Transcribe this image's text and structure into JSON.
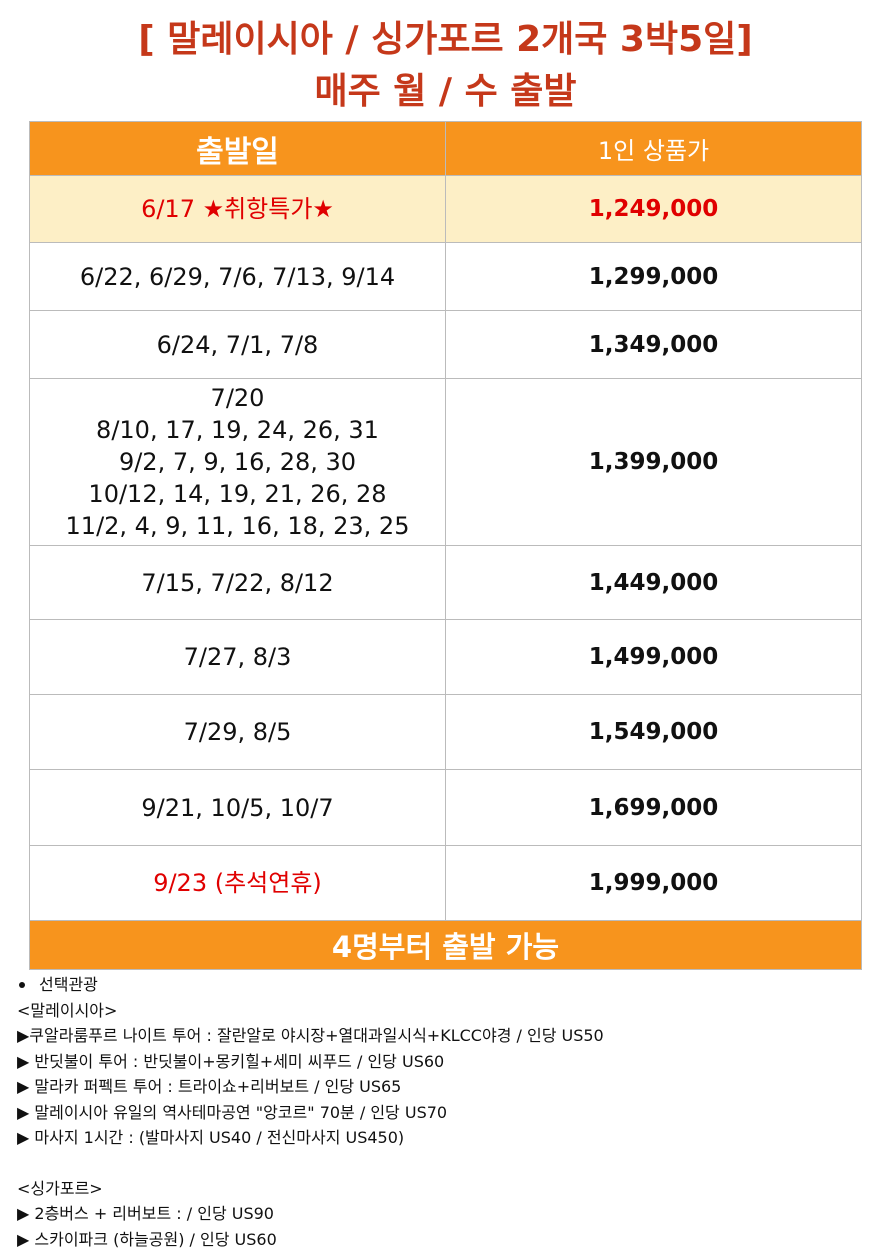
{
  "header": {
    "title": [
      "[ 말레이시아 / 싱가포르   2개국 3박5일]",
      "매주 월 / 수 출발"
    ]
  },
  "table": {
    "columns": [
      "출발일",
      "1인 상품가"
    ],
    "rows": [
      {
        "dates": [
          "6/17 ★취항특가★"
        ],
        "price": "1,249,000"
      },
      {
        "dates": [
          "6/22, 6/29, 7/6, 7/13, 9/14"
        ],
        "price": "1,299,000"
      },
      {
        "dates": [
          "6/24, 7/1, 7/8"
        ],
        "price": "1,349,000"
      },
      {
        "dates": [
          "7/20",
          "8/10, 17, 19, 24, 26, 31",
          "9/2, 7, 9, 16, 28, 30",
          "10/12, 14, 19, 21, 26, 28",
          "11/2, 4, 9, 11, 16, 18, 23, 25"
        ],
        "price": "1,399,000"
      },
      {
        "dates": [
          "7/15, 7/22, 8/12"
        ],
        "price": "1,449,000"
      },
      {
        "dates": [
          "7/27, 8/3"
        ],
        "price": "1,499,000"
      },
      {
        "dates": [
          "7/29, 8/5"
        ],
        "price": "1,549,000"
      },
      {
        "dates": [
          "9/21, 10/5, 10/7"
        ],
        "price": "1,699,000"
      },
      {
        "dates": [
          "9/23 (추석연휴)"
        ],
        "price": "1,999,000"
      }
    ],
    "footer": "4명부터 출발 가능"
  },
  "notes": {
    "heading": "선택관광",
    "groups": [
      {
        "title": "<말레이시아>",
        "items": [
          "▶쿠알라룸푸르 나이트 투어 : 잘란알로 야시장+열대과일시식+KLCC야경 / 인당 US50",
          "▶ 반딧불이 투어 : 반딧불이+몽키힐+세미 씨푸드 / 인당 US60",
          "▶ 말라카 퍼펙트 투어 : 트라이쇼+리버보트 / 인당 US65",
          "▶ 말레이시아 유일의 역사테마공연 \"앙코르\" 70분 / 인당 US70",
          "▶ 마사지 1시간 : (발마사지 US40 / 전신마사지 US450)"
        ]
      },
      {
        "title": "<싱가포르>",
        "items": [
          "▶ 2층버스 + 리버보트 : / 인당 US90",
          "▶ 스카이파크 (하늘공원) / 인당 US60"
        ]
      }
    ]
  }
}
